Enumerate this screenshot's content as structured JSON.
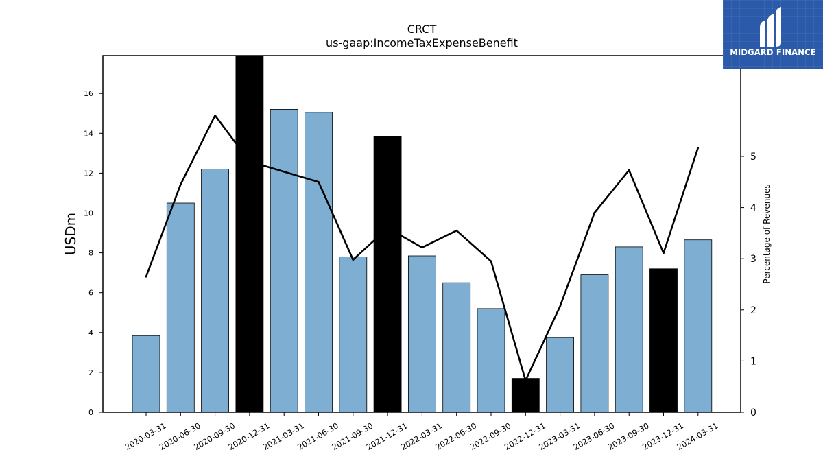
{
  "logo": {
    "text": "MIDGARD FINANCE"
  },
  "chart_data": {
    "type": "bar",
    "title": "CRCT",
    "subtitle": "us-gaap:IncomeTaxExpenseBenefit",
    "ylabel": "USDm",
    "y2label": "Percentage of Revenues",
    "ylim": [
      0,
      17.9
    ],
    "y2lim": [
      0,
      6.97
    ],
    "yticks": [
      0,
      2,
      4,
      6,
      8,
      10,
      12,
      14,
      16
    ],
    "y2ticks": [
      0,
      1,
      2,
      3,
      4,
      5
    ],
    "categories": [
      "2020-03-31",
      "2020-06-30",
      "2020-09-30",
      "2020-12-31",
      "2021-03-31",
      "2021-06-30",
      "2021-09-30",
      "2021-12-31",
      "2022-03-31",
      "2022-06-30",
      "2022-09-30",
      "2022-12-31",
      "2023-03-31",
      "2023-06-30",
      "2023-09-30",
      "2023-12-31",
      "2024-03-31"
    ],
    "series": [
      {
        "kind": "bar",
        "axis": "left",
        "values": [
          3.85,
          10.5,
          12.2,
          17.9,
          15.2,
          15.05,
          7.8,
          13.85,
          7.85,
          6.5,
          5.2,
          1.7,
          3.75,
          6.9,
          8.3,
          7.2,
          8.65
        ],
        "colors": [
          "#7eaed1",
          "#7eaed1",
          "#7eaed1",
          "#000000",
          "#7eaed1",
          "#7eaed1",
          "#7eaed1",
          "#000000",
          "#7eaed1",
          "#7eaed1",
          "#7eaed1",
          "#000000",
          "#7eaed1",
          "#7eaed1",
          "#7eaed1",
          "#000000",
          "#7eaed1"
        ]
      },
      {
        "kind": "line",
        "axis": "right",
        "color": "#000000",
        "values": [
          2.65,
          4.45,
          5.8,
          4.9,
          4.7,
          4.5,
          2.98,
          3.6,
          3.22,
          3.55,
          2.95,
          0.62,
          2.07,
          3.9,
          4.73,
          3.11,
          5.17
        ]
      }
    ],
    "grid": false,
    "legend": "none"
  }
}
